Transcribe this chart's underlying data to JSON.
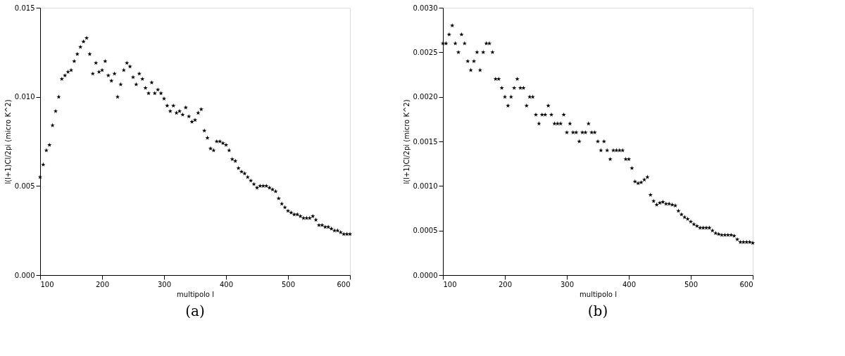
{
  "chart_data": [
    {
      "type": "scatter",
      "xlabel": "multipolo l",
      "ylabel": "l(l+1)Cl/2pi   (micro K^2)",
      "annotations": [
        "(a)"
      ],
      "marker": "star",
      "grid": false,
      "xlim": [
        100,
        600
      ],
      "xticks": [
        100,
        200,
        300,
        400,
        500,
        600
      ],
      "ylim": [
        0,
        0.015
      ],
      "yticks": [
        {
          "value": 0,
          "label": "0.000"
        },
        {
          "value": 0.005,
          "label": "0.005"
        },
        {
          "value": 0.01,
          "label": "0.010"
        },
        {
          "value": 0.015,
          "label": "0.015"
        }
      ],
      "x": [
        100,
        105,
        110,
        115,
        120,
        125,
        130,
        135,
        140,
        145,
        150,
        155,
        160,
        165,
        170,
        175,
        180,
        185,
        190,
        195,
        200,
        205,
        210,
        215,
        220,
        225,
        230,
        235,
        240,
        245,
        250,
        255,
        260,
        265,
        270,
        275,
        280,
        285,
        290,
        295,
        300,
        305,
        310,
        315,
        320,
        325,
        330,
        335,
        340,
        345,
        350,
        355,
        360,
        365,
        370,
        375,
        380,
        385,
        390,
        395,
        400,
        405,
        410,
        415,
        420,
        425,
        430,
        435,
        440,
        445,
        450,
        455,
        460,
        465,
        470,
        475,
        480,
        485,
        490,
        495,
        500,
        505,
        510,
        515,
        520,
        525,
        530,
        535,
        540,
        545,
        550,
        555,
        560,
        565,
        570,
        575,
        580,
        585,
        590,
        595,
        600
      ],
      "series": [
        {
          "color": "#000000",
          "values": [
            0.0055,
            0.0062,
            0.007,
            0.0073,
            0.0084,
            0.0092,
            0.01,
            0.011,
            0.0112,
            0.0114,
            0.0115,
            0.012,
            0.0124,
            0.0128,
            0.0131,
            0.0133,
            0.0124,
            0.0113,
            0.0119,
            0.0114,
            0.0115,
            0.012,
            0.0112,
            0.0109,
            0.0113,
            0.01,
            0.0107,
            0.0115,
            0.0119,
            0.0117,
            0.0111,
            0.0107,
            0.0113,
            0.011,
            0.0105,
            0.0102,
            0.0108,
            0.0102,
            0.0104,
            0.0102,
            0.0099,
            0.0095,
            0.0092,
            0.0095,
            0.0091,
            0.0092,
            0.009,
            0.0094,
            0.0089,
            0.0086,
            0.0087,
            0.0091,
            0.0093,
            0.0081,
            0.0077,
            0.0071,
            0.007,
            0.0075,
            0.0075,
            0.0074,
            0.0073,
            0.007,
            0.0065,
            0.0064,
            0.006,
            0.0058,
            0.0057,
            0.0055,
            0.0053,
            0.0051,
            0.0049,
            0.005,
            0.005,
            0.005,
            0.0049,
            0.0048,
            0.0047,
            0.0043,
            0.004,
            0.0038,
            0.0036,
            0.0035,
            0.0034,
            0.0034,
            0.0033,
            0.0032,
            0.0032,
            0.0032,
            0.0033,
            0.0031,
            0.0028,
            0.0028,
            0.0027,
            0.0027,
            0.0026,
            0.0025,
            0.0025,
            0.0024,
            0.0023,
            0.0023,
            0.0023
          ]
        }
      ]
    },
    {
      "type": "scatter",
      "xlabel": "multipolo l",
      "ylabel": "l(l+1)Cl/2pi   (micro K^2)",
      "annotations": [
        "(b)"
      ],
      "marker": "star",
      "grid": false,
      "xlim": [
        100,
        600
      ],
      "xticks": [
        100,
        200,
        300,
        400,
        500,
        600
      ],
      "ylim": [
        0,
        0.003
      ],
      "yticks": [
        {
          "value": 0,
          "label": "0.0000"
        },
        {
          "value": 0.0005,
          "label": "0.0005"
        },
        {
          "value": 0.001,
          "label": "0.0010"
        },
        {
          "value": 0.0015,
          "label": "0.0015"
        },
        {
          "value": 0.002,
          "label": "0.0020"
        },
        {
          "value": 0.0025,
          "label": "0.0025"
        },
        {
          "value": 0.003,
          "label": "0.0030"
        }
      ],
      "x": [
        100,
        105,
        110,
        115,
        120,
        125,
        130,
        135,
        140,
        145,
        150,
        155,
        160,
        165,
        170,
        175,
        180,
        185,
        190,
        195,
        200,
        205,
        210,
        215,
        220,
        225,
        230,
        235,
        240,
        245,
        250,
        255,
        260,
        265,
        270,
        275,
        280,
        285,
        290,
        295,
        300,
        305,
        310,
        315,
        320,
        325,
        330,
        335,
        340,
        345,
        350,
        355,
        360,
        365,
        370,
        375,
        380,
        385,
        390,
        395,
        400,
        405,
        410,
        415,
        420,
        425,
        430,
        435,
        440,
        445,
        450,
        455,
        460,
        465,
        470,
        475,
        480,
        485,
        490,
        495,
        500,
        505,
        510,
        515,
        520,
        525,
        530,
        535,
        540,
        545,
        550,
        555,
        560,
        565,
        570,
        575,
        580,
        585,
        590,
        595,
        600
      ],
      "series": [
        {
          "color": "#000000",
          "values": [
            0.0026,
            0.0026,
            0.0027,
            0.0028,
            0.0026,
            0.0025,
            0.0027,
            0.0026,
            0.0024,
            0.0023,
            0.0024,
            0.0025,
            0.0023,
            0.0025,
            0.0026,
            0.0026,
            0.0025,
            0.0022,
            0.0022,
            0.0021,
            0.002,
            0.0019,
            0.002,
            0.0021,
            0.0022,
            0.0021,
            0.0021,
            0.0019,
            0.002,
            0.002,
            0.0018,
            0.0017,
            0.0018,
            0.0018,
            0.0019,
            0.0018,
            0.0017,
            0.0017,
            0.0017,
            0.0018,
            0.0016,
            0.0017,
            0.0016,
            0.0016,
            0.0015,
            0.0016,
            0.0016,
            0.0017,
            0.0016,
            0.0016,
            0.0015,
            0.0014,
            0.0015,
            0.0014,
            0.0013,
            0.0014,
            0.0014,
            0.0014,
            0.0014,
            0.0013,
            0.0013,
            0.0012,
            0.00105,
            0.00103,
            0.00104,
            0.00107,
            0.0011,
            0.0009,
            0.00083,
            0.00079,
            0.00081,
            0.00082,
            0.0008,
            0.0008,
            0.00079,
            0.00078,
            0.00072,
            0.00068,
            0.00065,
            0.00063,
            0.0006,
            0.00057,
            0.00055,
            0.00053,
            0.00053,
            0.00053,
            0.00053,
            0.0005,
            0.00047,
            0.00046,
            0.00045,
            0.00045,
            0.00045,
            0.00045,
            0.00044,
            0.0004,
            0.00037,
            0.00037,
            0.00037,
            0.00037,
            0.00036
          ]
        }
      ]
    }
  ]
}
